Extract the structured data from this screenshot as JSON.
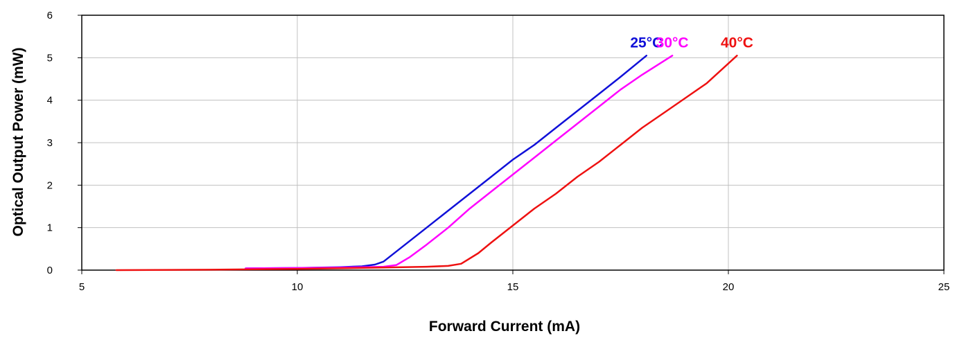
{
  "chart_data": {
    "type": "line",
    "title": "",
    "xlabel": "Forward Current (mA)",
    "ylabel": "Optical Output Power (mW)",
    "xlim": [
      5,
      25
    ],
    "ylim": [
      0,
      6
    ],
    "xticks": [
      5,
      10,
      15,
      20,
      25
    ],
    "yticks": [
      0,
      1,
      2,
      3,
      4,
      5,
      6
    ],
    "grid": true,
    "legend": "inline labels at line ends",
    "series": [
      {
        "name": "25°C",
        "color": "#1010d8",
        "x": [
          8.8,
          10.0,
          11.0,
          11.5,
          11.8,
          12.0,
          12.5,
          13.0,
          13.5,
          14.0,
          14.5,
          15.0,
          15.5,
          16.0,
          16.5,
          17.0,
          17.5,
          18.1
        ],
        "y": [
          0.04,
          0.05,
          0.07,
          0.09,
          0.13,
          0.2,
          0.6,
          1.0,
          1.4,
          1.8,
          2.2,
          2.6,
          2.95,
          3.35,
          3.75,
          4.15,
          4.55,
          5.05
        ]
      },
      {
        "name": "30°C",
        "color": "#ff00ff",
        "x": [
          8.8,
          10.0,
          11.0,
          12.0,
          12.3,
          12.6,
          13.0,
          13.5,
          14.0,
          14.5,
          15.0,
          15.5,
          16.0,
          16.5,
          17.0,
          17.5,
          18.0,
          18.7
        ],
        "y": [
          0.04,
          0.05,
          0.06,
          0.08,
          0.12,
          0.3,
          0.6,
          1.0,
          1.45,
          1.85,
          2.25,
          2.65,
          3.05,
          3.45,
          3.85,
          4.25,
          4.6,
          5.05
        ]
      },
      {
        "name": "40°C",
        "color": "#ee1111",
        "x": [
          5.8,
          8.0,
          10.0,
          12.0,
          13.0,
          13.5,
          13.8,
          14.2,
          14.5,
          15.0,
          15.5,
          16.0,
          16.5,
          17.0,
          17.5,
          18.0,
          18.5,
          19.0,
          19.5,
          20.2
        ],
        "y": [
          0.0,
          0.01,
          0.03,
          0.06,
          0.08,
          0.1,
          0.15,
          0.4,
          0.65,
          1.05,
          1.45,
          1.8,
          2.2,
          2.55,
          2.95,
          3.35,
          3.7,
          4.05,
          4.4,
          5.05
        ]
      }
    ]
  }
}
